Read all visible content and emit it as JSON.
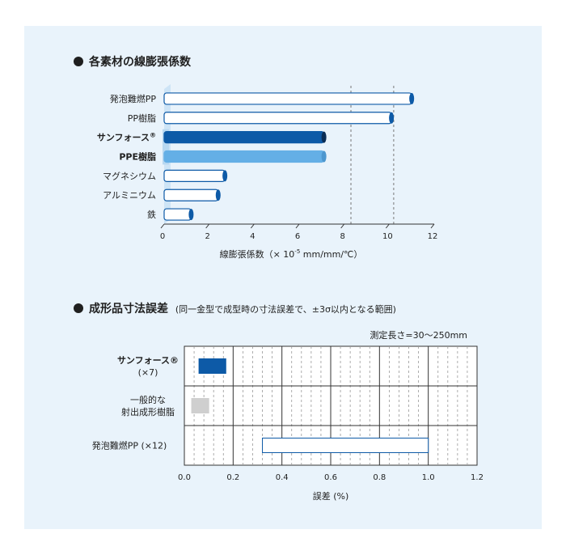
{
  "colors": {
    "background": "#e9f3fb",
    "dark_blue": "#0d5aa7",
    "mid_blue": "#64afe6",
    "outline_blue": "#0d5aa7",
    "gray": "#cfcfcf",
    "highlight_band": "#cde4f6"
  },
  "chart_data": [
    {
      "type": "bar",
      "orientation": "horizontal",
      "title": "各素材の線膨張係数",
      "xlabel_main": "線膨張係数（× 10",
      "xlabel_sup": "-5",
      "xlabel_tail": " mm/mm/℃）",
      "xlim": [
        0,
        12
      ],
      "xticks": [
        0,
        2,
        4,
        6,
        8,
        10,
        12
      ],
      "grid": "dashed lines at 8.3 and 10.2",
      "gridlines": [
        8.3,
        10.2
      ],
      "categories": [
        "発泡難燃PP",
        "PP樹脂",
        "サンフォース",
        "PPE樹脂",
        "マグネシウム",
        "アルミニウム",
        "鉄"
      ],
      "category_suffix": [
        "",
        "",
        "®",
        "",
        "",
        "",
        ""
      ],
      "values": [
        11.0,
        10.1,
        7.1,
        7.1,
        2.7,
        2.4,
        1.2
      ],
      "styles": [
        "outline",
        "outline",
        "dark",
        "mid",
        "outline",
        "outline",
        "outline"
      ]
    },
    {
      "type": "bar",
      "orientation": "horizontal-range",
      "title": "成形品寸法誤差",
      "subtitle": "(同一金型で成型時の寸法誤差で、±3σ以内となる範囲)",
      "note": "測定長さ=30～250mm",
      "xlabel": "誤差 (%)",
      "xlim": [
        0,
        1.2
      ],
      "xticks": [
        "0.0",
        "0.2",
        "0.4",
        "0.6",
        "0.8",
        "1.0",
        "1.2"
      ],
      "grid": "solid major every 0.2, dashed minor every 0.04",
      "rows": [
        {
          "lines": [
            "サンフォース®",
            "(×7)"
          ],
          "start": 0.06,
          "end": 0.17,
          "style": "dark"
        },
        {
          "lines": [
            "一般的な",
            "射出成形樹脂"
          ],
          "start": 0.03,
          "end": 0.1,
          "style": "gray"
        },
        {
          "lines": [
            "発泡難燃PP (×12)"
          ],
          "start": 0.32,
          "end": 1.0,
          "style": "outline"
        }
      ]
    }
  ]
}
